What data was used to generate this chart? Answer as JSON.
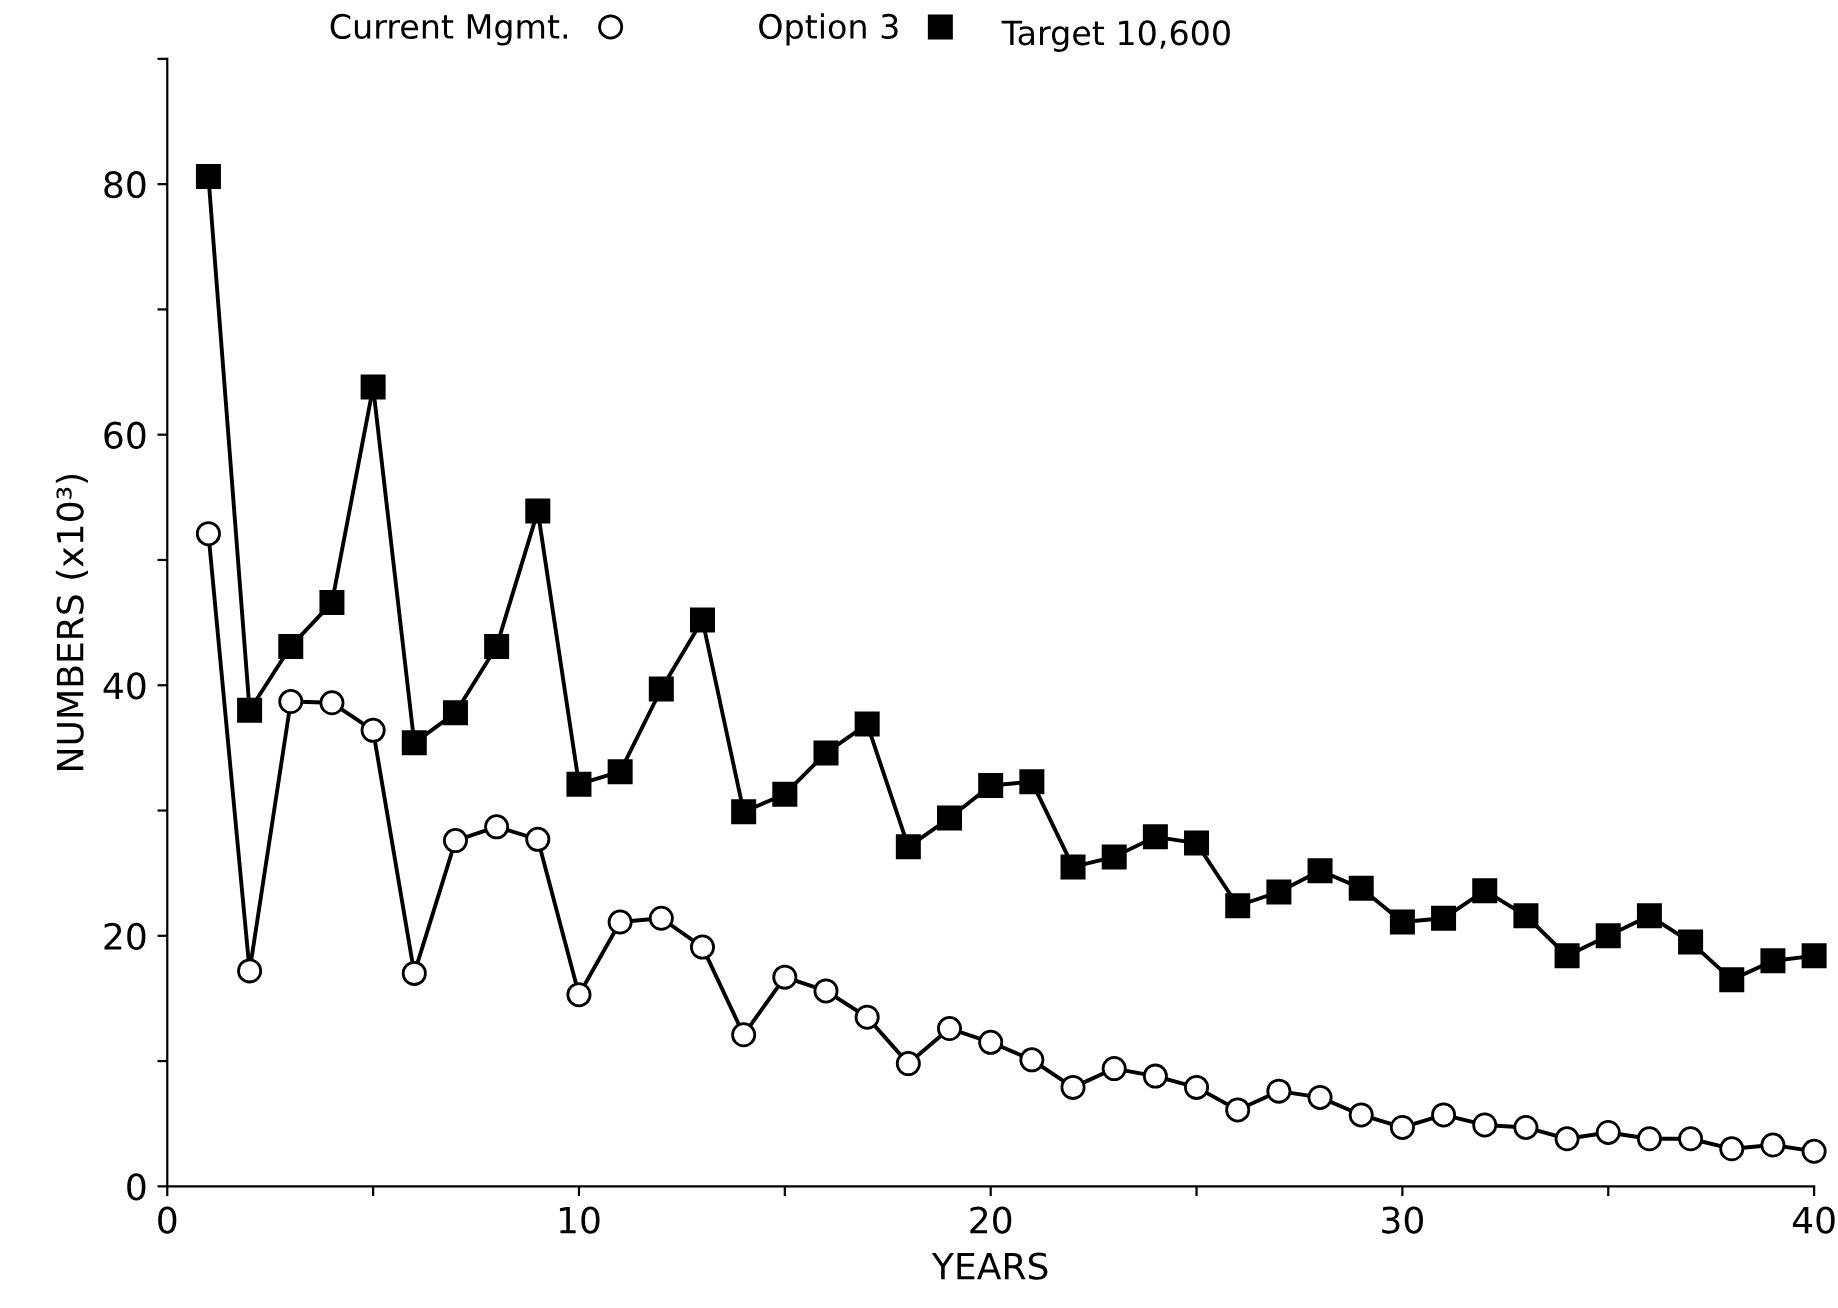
{
  "chart_data": {
    "type": "line",
    "xlabel": "YEARS",
    "ylabel": "NUMBERS (x10³)",
    "x": [
      1,
      2,
      3,
      4,
      5,
      6,
      7,
      8,
      9,
      10,
      11,
      12,
      13,
      14,
      15,
      16,
      17,
      18,
      19,
      20,
      21,
      22,
      23,
      24,
      25,
      26,
      27,
      28,
      29,
      30,
      31,
      32,
      33,
      34,
      35,
      36,
      37,
      38,
      39,
      40
    ],
    "series": [
      {
        "name": "Current Mgmt.",
        "color": "#000000",
        "marker": "circle",
        "values": [
          52.1,
          17.2,
          38.7,
          38.6,
          36.4,
          17.0,
          27.6,
          28.7,
          27.7,
          15.3,
          21.1,
          21.4,
          19.1,
          12.1,
          16.7,
          15.6,
          13.5,
          9.8,
          12.6,
          11.5,
          10.1,
          7.9,
          9.4,
          8.8,
          7.9,
          6.1,
          7.6,
          7.1,
          5.7,
          4.7,
          5.7,
          4.9,
          4.7,
          3.8,
          4.3,
          3.8,
          3.8,
          3.0,
          3.3,
          2.8
        ]
      },
      {
        "name": "Option 3",
        "color": "#000000",
        "marker": "square",
        "values": [
          80.6,
          38.0,
          43.1,
          46.6,
          63.8,
          35.4,
          37.8,
          43.1,
          53.9,
          32.1,
          33.1,
          39.7,
          45.2,
          29.9,
          31.3,
          34.6,
          36.9,
          27.1,
          29.4,
          32.0,
          32.3,
          25.5,
          26.3,
          27.9,
          27.4,
          22.4,
          23.5,
          25.2,
          23.8,
          21.1,
          21.4,
          23.6,
          21.6,
          18.4,
          20.0,
          21.6,
          19.5,
          16.5,
          18.0,
          18.4
        ]
      }
    ],
    "annotations": [
      "Target 10,600"
    ],
    "xlim": [
      0,
      40
    ],
    "xticks": [
      0,
      {
        "value": 5,
        "label": null
      },
      10,
      {
        "value": 15,
        "label": null
      },
      20,
      {
        "value": 25,
        "label": null
      },
      30,
      {
        "value": 35,
        "label": null
      },
      40
    ],
    "ylim": [
      0,
      90
    ],
    "yticks": [
      0,
      {
        "value": 10,
        "label": null
      },
      20,
      {
        "value": 30,
        "label": null
      },
      40,
      {
        "value": 50,
        "label": null
      },
      60,
      {
        "value": 70,
        "label": null
      },
      80,
      {
        "value": 90,
        "label": null
      }
    ],
    "legend": "top",
    "grid": false
  }
}
